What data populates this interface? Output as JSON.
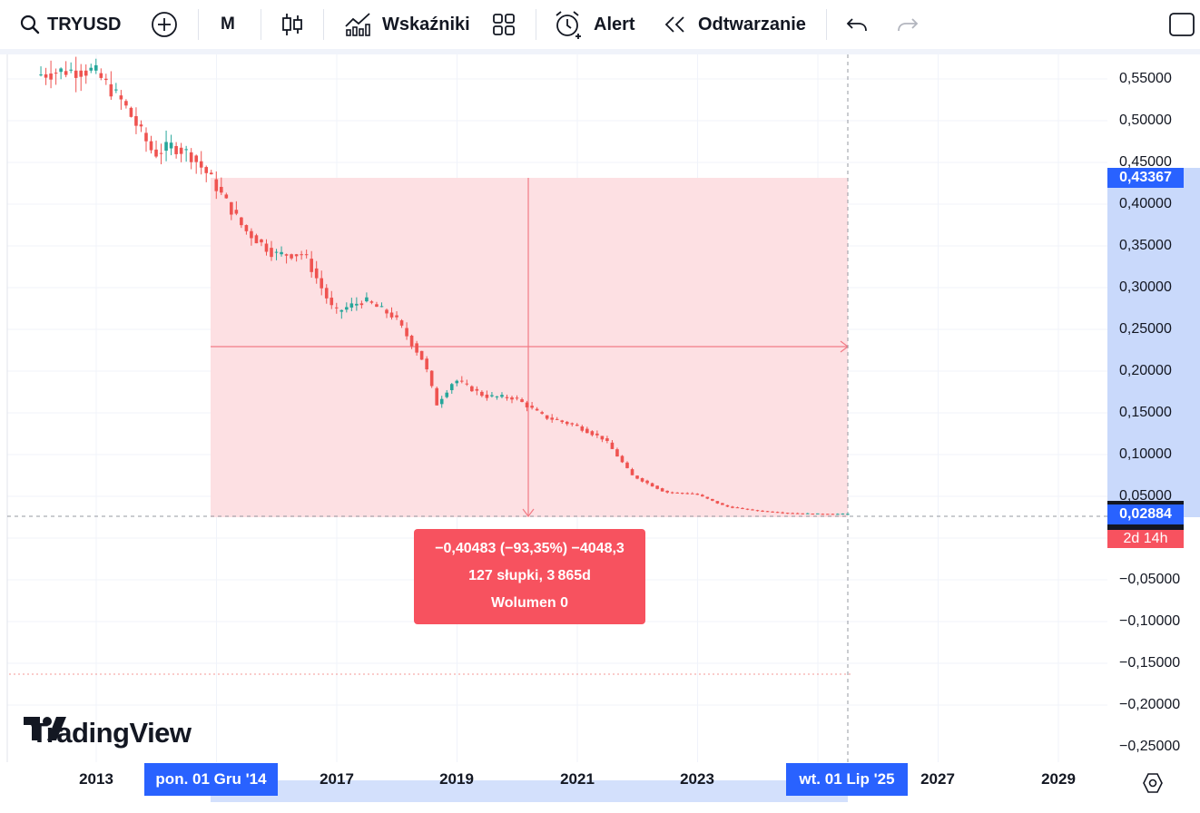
{
  "toolbar": {
    "symbol": "TRYUSD",
    "interval": "M",
    "indicators_label": "Wskaźniki",
    "alert_label": "Alert",
    "replay_label": "Odtwarzanie",
    "icons": [
      "search-icon",
      "add-symbol-icon",
      "candles-icon",
      "indicators-icon",
      "layouts-icon",
      "alarm-clock-icon",
      "replay-icon",
      "undo-icon",
      "redo-icon",
      "fullscreen-icon"
    ]
  },
  "price_scale": {
    "labels": [
      "0,55000",
      "0,50000",
      "0,45000",
      "0,40000",
      "0,35000",
      "0,30000",
      "0,25000",
      "0,20000",
      "0,15000",
      "0,10000",
      "0,05000",
      "−0,05000",
      "−0,10000",
      "−0,15000",
      "−0,20000",
      "−0,25000"
    ],
    "range_top_badge": "0,43367",
    "current_price_badge": "0,02884",
    "countdown_badge": "2d 14h"
  },
  "time_scale": {
    "labels": [
      "2013",
      "2017",
      "2019",
      "2021",
      "2023",
      "2027",
      "2029"
    ],
    "range_start_badge": "pon. 01 Gru '14",
    "range_end_badge": "wt. 01 Lip '25"
  },
  "measurement": {
    "change_line": "−0,40483 (−93,35%) −4048,3",
    "bars_line": "127 słupki, 3 865d",
    "volume_line": "Wolumen 0"
  },
  "branding": {
    "logo_text": "TradingView"
  },
  "colors": {
    "up": "#26a69a",
    "down": "#ef5350",
    "range_fill": "#fde0e3",
    "badge_blue": "#2962ff",
    "badge_red": "#f7525f"
  },
  "chart_data": {
    "type": "candlestick",
    "symbol": "TRYUSD",
    "interval": "M",
    "ylim": [
      -0.27,
      0.58
    ],
    "x_range": [
      "2012-01",
      "2030-06"
    ],
    "series": [
      {
        "values": [
          [
            2012.08,
            0.555
          ],
          [
            2012.5,
            0.56
          ],
          [
            2013.0,
            0.56
          ],
          [
            2013.5,
            0.52
          ],
          [
            2014.0,
            0.46
          ],
          [
            2014.3,
            0.47
          ],
          [
            2014.6,
            0.46
          ],
          [
            2014.92,
            0.43367
          ],
          [
            2015.5,
            0.37
          ],
          [
            2016.0,
            0.34
          ],
          [
            2016.5,
            0.34
          ],
          [
            2017.0,
            0.27
          ],
          [
            2017.5,
            0.285
          ],
          [
            2018.0,
            0.265
          ],
          [
            2018.5,
            0.21
          ],
          [
            2018.7,
            0.16
          ],
          [
            2019.0,
            0.19
          ],
          [
            2019.5,
            0.17
          ],
          [
            2020.0,
            0.168
          ],
          [
            2020.5,
            0.145
          ],
          [
            2021.0,
            0.135
          ],
          [
            2021.5,
            0.118
          ],
          [
            2021.95,
            0.075
          ],
          [
            2022.5,
            0.055
          ],
          [
            2023.0,
            0.053
          ],
          [
            2023.5,
            0.038
          ],
          [
            2024.0,
            0.033
          ],
          [
            2024.5,
            0.03
          ],
          [
            2025.0,
            0.029
          ],
          [
            2025.5,
            0.02884
          ]
        ]
      }
    ]
  }
}
